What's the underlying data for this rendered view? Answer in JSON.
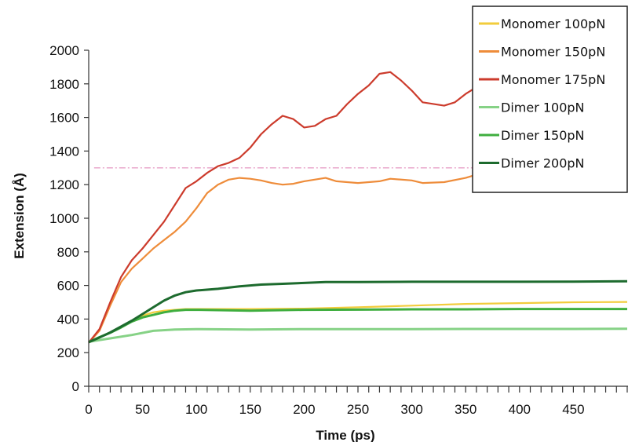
{
  "chart_data": {
    "type": "line",
    "title": "",
    "xlabel": "Time (ps)",
    "ylabel": "Extension (Å)",
    "xlim": [
      0,
      500
    ],
    "ylim": [
      0,
      2000
    ],
    "x_ticks": [
      0,
      50,
      100,
      150,
      200,
      250,
      300,
      350,
      400,
      450
    ],
    "y_ticks": [
      0,
      200,
      400,
      600,
      800,
      1000,
      1200,
      1400,
      1600,
      1800,
      2000
    ],
    "grid": false,
    "legend_position": "top-right",
    "reference_line": {
      "y": 1300,
      "x_range": [
        5,
        375
      ],
      "style": "dash-dot",
      "color": "#e8a0c8"
    },
    "series": [
      {
        "name": "Monomer 100pN",
        "color": "#f2cc3c",
        "points": [
          [
            0,
            260
          ],
          [
            10,
            290
          ],
          [
            20,
            320
          ],
          [
            30,
            355
          ],
          [
            40,
            390
          ],
          [
            50,
            420
          ],
          [
            60,
            440
          ],
          [
            70,
            450
          ],
          [
            80,
            455
          ],
          [
            90,
            460
          ],
          [
            100,
            460
          ],
          [
            150,
            460
          ],
          [
            200,
            462
          ],
          [
            250,
            470
          ],
          [
            300,
            480
          ],
          [
            350,
            490
          ],
          [
            400,
            495
          ],
          [
            450,
            500
          ],
          [
            500,
            502
          ]
        ]
      },
      {
        "name": "Monomer 150pN",
        "color": "#ee8c3a",
        "points": [
          [
            0,
            260
          ],
          [
            10,
            330
          ],
          [
            20,
            480
          ],
          [
            30,
            620
          ],
          [
            40,
            700
          ],
          [
            50,
            760
          ],
          [
            60,
            820
          ],
          [
            70,
            870
          ],
          [
            80,
            920
          ],
          [
            90,
            980
          ],
          [
            100,
            1060
          ],
          [
            110,
            1150
          ],
          [
            120,
            1200
          ],
          [
            130,
            1230
          ],
          [
            140,
            1240
          ],
          [
            150,
            1235
          ],
          [
            160,
            1225
          ],
          [
            170,
            1210
          ],
          [
            180,
            1200
          ],
          [
            190,
            1205
          ],
          [
            200,
            1220
          ],
          [
            220,
            1240
          ],
          [
            230,
            1220
          ],
          [
            250,
            1210
          ],
          [
            270,
            1220
          ],
          [
            280,
            1235
          ],
          [
            300,
            1225
          ],
          [
            310,
            1210
          ],
          [
            330,
            1215
          ],
          [
            350,
            1240
          ],
          [
            360,
            1260
          ]
        ]
      },
      {
        "name": "Monomer 175pN",
        "color": "#cc3b2c",
        "points": [
          [
            0,
            260
          ],
          [
            10,
            340
          ],
          [
            20,
            500
          ],
          [
            30,
            650
          ],
          [
            40,
            750
          ],
          [
            50,
            820
          ],
          [
            60,
            900
          ],
          [
            70,
            980
          ],
          [
            80,
            1080
          ],
          [
            90,
            1180
          ],
          [
            100,
            1220
          ],
          [
            110,
            1270
          ],
          [
            120,
            1310
          ],
          [
            130,
            1330
          ],
          [
            140,
            1360
          ],
          [
            150,
            1420
          ],
          [
            160,
            1500
          ],
          [
            170,
            1560
          ],
          [
            180,
            1610
          ],
          [
            190,
            1590
          ],
          [
            200,
            1540
          ],
          [
            210,
            1550
          ],
          [
            220,
            1590
          ],
          [
            230,
            1610
          ],
          [
            240,
            1680
          ],
          [
            250,
            1740
          ],
          [
            260,
            1790
          ],
          [
            270,
            1860
          ],
          [
            280,
            1870
          ],
          [
            290,
            1820
          ],
          [
            300,
            1760
          ],
          [
            310,
            1690
          ],
          [
            330,
            1670
          ],
          [
            340,
            1690
          ],
          [
            350,
            1740
          ],
          [
            360,
            1780
          ]
        ]
      },
      {
        "name": "Dimer 100pN",
        "color": "#86d286",
        "points": [
          [
            0,
            265
          ],
          [
            20,
            285
          ],
          [
            40,
            305
          ],
          [
            60,
            330
          ],
          [
            80,
            338
          ],
          [
            100,
            340
          ],
          [
            150,
            338
          ],
          [
            200,
            340
          ],
          [
            250,
            340
          ],
          [
            300,
            340
          ],
          [
            350,
            341
          ],
          [
            400,
            341
          ],
          [
            450,
            341
          ],
          [
            500,
            342
          ]
        ]
      },
      {
        "name": "Dimer 150pN",
        "color": "#3fae3f",
        "points": [
          [
            0,
            262
          ],
          [
            10,
            292
          ],
          [
            20,
            318
          ],
          [
            30,
            350
          ],
          [
            40,
            385
          ],
          [
            50,
            410
          ],
          [
            60,
            425
          ],
          [
            70,
            440
          ],
          [
            80,
            450
          ],
          [
            90,
            455
          ],
          [
            100,
            455
          ],
          [
            150,
            450
          ],
          [
            200,
            455
          ],
          [
            250,
            456
          ],
          [
            300,
            458
          ],
          [
            350,
            458
          ],
          [
            400,
            460
          ],
          [
            450,
            460
          ],
          [
            500,
            460
          ]
        ]
      },
      {
        "name": "Dimer 200pN",
        "color": "#1d6b2e",
        "points": [
          [
            0,
            262
          ],
          [
            10,
            290
          ],
          [
            20,
            320
          ],
          [
            30,
            355
          ],
          [
            40,
            390
          ],
          [
            50,
            430
          ],
          [
            60,
            470
          ],
          [
            70,
            510
          ],
          [
            80,
            540
          ],
          [
            90,
            560
          ],
          [
            100,
            570
          ],
          [
            120,
            580
          ],
          [
            140,
            595
          ],
          [
            160,
            605
          ],
          [
            180,
            610
          ],
          [
            200,
            615
          ],
          [
            220,
            620
          ],
          [
            250,
            620
          ],
          [
            300,
            622
          ],
          [
            350,
            622
          ],
          [
            400,
            622
          ],
          [
            450,
            623
          ],
          [
            500,
            625
          ]
        ]
      }
    ]
  }
}
